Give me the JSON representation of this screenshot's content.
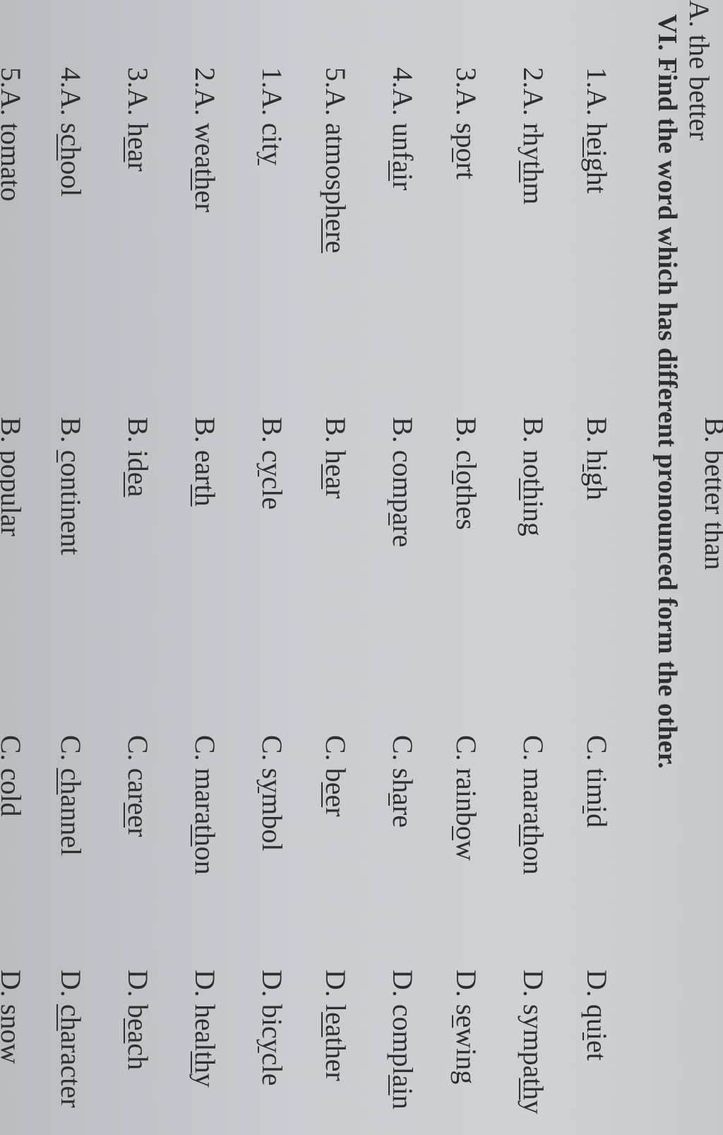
{
  "prev_line": {
    "a": "A. the better",
    "b": "B. better than"
  },
  "heading": "VI. Find the word which has different pronounced form the other.",
  "rows": [
    {
      "num": "1.",
      "options": [
        {
          "l": "A.",
          "pre": "h",
          "u": "ei",
          "post": "ght"
        },
        {
          "l": "B.",
          "pre": "h",
          "u": "i",
          "post": "gh"
        },
        {
          "l": "C.",
          "pre": "tim",
          "u": "i",
          "post": "d"
        },
        {
          "l": "D.",
          "pre": "qu",
          "u": "i",
          "post": "et"
        }
      ]
    },
    {
      "num": "2.",
      "options": [
        {
          "l": "A.",
          "pre": "rhy",
          "u": "th",
          "post": "m"
        },
        {
          "l": "B.",
          "pre": "no",
          "u": "th",
          "post": "ing"
        },
        {
          "l": "C.",
          "pre": "mara",
          "u": "th",
          "post": "on"
        },
        {
          "l": "D.",
          "pre": "sympa",
          "u": "th",
          "post": "y"
        }
      ]
    },
    {
      "num": "3.",
      "options": [
        {
          "l": "A.",
          "pre": "sp",
          "u": "o",
          "post": "rt"
        },
        {
          "l": "B.",
          "pre": "cl",
          "u": "o",
          "post": "thes"
        },
        {
          "l": "C.",
          "pre": "rainb",
          "u": "o",
          "post": "w"
        },
        {
          "l": "D.",
          "pre": "s",
          "u": "e",
          "post": "wing"
        }
      ]
    },
    {
      "num": "4.",
      "options": [
        {
          "l": "A.",
          "pre": "unf",
          "u": "ai",
          "post": "r"
        },
        {
          "l": "B.",
          "pre": "comp",
          "u": "a",
          "post": "re"
        },
        {
          "l": "C.",
          "pre": "sh",
          "u": "a",
          "post": "re"
        },
        {
          "l": "D.",
          "pre": "compl",
          "u": "ai",
          "post": "n"
        }
      ]
    },
    {
      "num": "5.",
      "options": [
        {
          "l": "A.",
          "pre": "atmosph",
          "u": "ere",
          "post": ""
        },
        {
          "l": "B.",
          "pre": "h",
          "u": "ea",
          "post": "r"
        },
        {
          "l": "C.",
          "pre": "b",
          "u": "ee",
          "post": "r"
        },
        {
          "l": "D.",
          "pre": "l",
          "u": "ea",
          "post": "ther"
        }
      ]
    },
    {
      "num": "1.",
      "options": [
        {
          "l": "A.",
          "pre": "cit",
          "u": "y",
          "post": ""
        },
        {
          "l": "B.",
          "pre": "c",
          "u": "y",
          "post": "cle"
        },
        {
          "l": "C.",
          "pre": "s",
          "u": "y",
          "post": "mbol"
        },
        {
          "l": "D.",
          "pre": "bic",
          "u": "y",
          "post": "cle"
        }
      ]
    },
    {
      "num": "2.",
      "options": [
        {
          "l": "A.",
          "pre": "wea",
          "u": "th",
          "post": "er"
        },
        {
          "l": "B.",
          "pre": "ear",
          "u": "th",
          "post": ""
        },
        {
          "l": "C.",
          "pre": "mara",
          "u": "th",
          "post": "on"
        },
        {
          "l": "D.",
          "pre": "heal",
          "u": "th",
          "post": "y"
        }
      ]
    },
    {
      "num": "3.",
      "options": [
        {
          "l": "A.",
          "pre": "h",
          "u": "ea",
          "post": "r"
        },
        {
          "l": "B.",
          "pre": "id",
          "u": "ea",
          "post": ""
        },
        {
          "l": "C.",
          "pre": "car",
          "u": "ee",
          "post": "r"
        },
        {
          "l": "D.",
          "pre": "b",
          "u": "ea",
          "post": "ch"
        }
      ]
    },
    {
      "num": "4.",
      "options": [
        {
          "l": "A.",
          "pre": "s",
          "u": "ch",
          "post": "ool"
        },
        {
          "l": "B.",
          "pre": "",
          "u": "c",
          "post": "ontinent"
        },
        {
          "l": "C.",
          "pre": "",
          "u": "ch",
          "post": "annel"
        },
        {
          "l": "D.",
          "pre": "",
          "u": "ch",
          "post": "aracter"
        }
      ]
    },
    {
      "num": "5.",
      "options": [
        {
          "l": "A.",
          "pre": "tomato",
          "u": "",
          "post": ""
        },
        {
          "l": "B.",
          "pre": "popular",
          "u": "",
          "post": ""
        },
        {
          "l": "C.",
          "pre": "cold",
          "u": "",
          "post": ""
        },
        {
          "l": "D.",
          "pre": "snow",
          "u": "",
          "post": ""
        }
      ]
    }
  ],
  "colors": {
    "paper": "#c9ccd0",
    "ink": "#2e2e30"
  }
}
